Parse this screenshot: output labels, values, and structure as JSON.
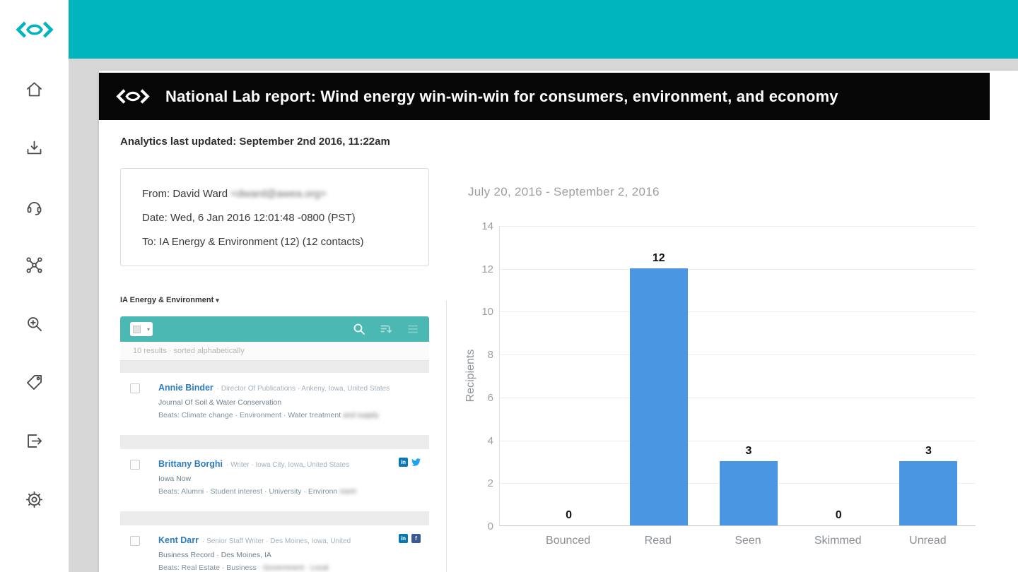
{
  "brand": {
    "accent_teal": "#00b5bd",
    "list_header_teal": "#4cb8b3"
  },
  "sidebar": {
    "icons": [
      "home",
      "downloads",
      "support",
      "connections",
      "search",
      "tags",
      "export",
      "settings"
    ]
  },
  "titlebar": {
    "title": "National Lab report: Wind energy win-win-win for consumers, environment, and economy"
  },
  "status": {
    "updated": "Analytics last updated: September 2nd 2016, 11:22am"
  },
  "email_meta": {
    "from": "From: David Ward",
    "from_email_blurred": "<dward@awea.org>",
    "date": "Date: Wed, 6 Jan 2016 12:01:48 -0800 (PST)",
    "to": "To: IA Energy & Environment (12) (12 contacts)"
  },
  "contact_list": {
    "group_label": "IA Energy & Environment",
    "group_caret": "▾",
    "results_text": "10 results · sorted alphabetically",
    "contacts": [
      {
        "name": "Annie Binder",
        "meta": "· Director Of Publications · Ankeny, Iowa, United States",
        "org": "Journal Of Soil & Water Conservation",
        "beats": "Beats: Climate change · Environment · Water treatment",
        "beats_blurred": "and supply",
        "social": []
      },
      {
        "name": "Brittany Borghi",
        "meta": "· Writer · Iowa City, Iowa, United States",
        "org": "Iowa Now",
        "beats": "Beats: Alumni · Student interest · University · Environn",
        "beats_blurred": "ment",
        "social": [
          "linkedin",
          "twitter"
        ]
      },
      {
        "name": "Kent Darr",
        "meta": "· Senior Staff Writer · Des Moines, Iowa, United",
        "org": "Business Record · Des Moines, IA",
        "beats": "Beats: Real Estate · Business",
        "beats_blurred": "· Government · Local",
        "social": [
          "linkedin",
          "facebook"
        ]
      }
    ]
  },
  "chart_data": {
    "type": "bar",
    "title": "July 20, 2016 - September 2, 2016",
    "categories": [
      "Bounced",
      "Read",
      "Seen",
      "Skimmed",
      "Unread"
    ],
    "values": [
      0,
      12,
      3,
      0,
      3
    ],
    "xlabel": "",
    "ylabel": "Recipients",
    "ylim": [
      0,
      14
    ],
    "yticks": [
      0,
      2,
      4,
      6,
      8,
      10,
      12,
      14
    ],
    "bar_color": "#4a96e2",
    "grid": true,
    "legend": false
  }
}
